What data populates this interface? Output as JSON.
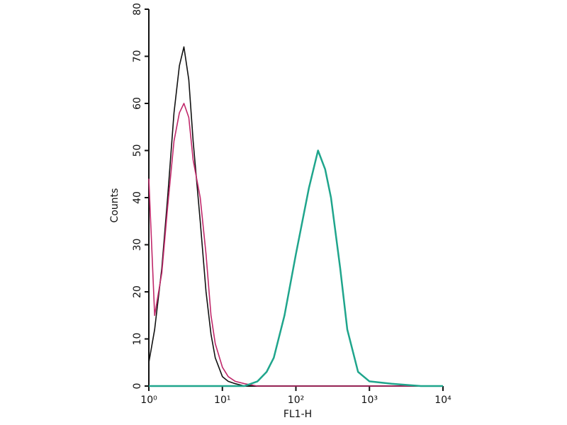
{
  "chart_data": {
    "type": "line",
    "xlabel": "FL1-H",
    "ylabel": "Counts",
    "log_x": true,
    "x": [
      1,
      1.2,
      1.5,
      1.8,
      2.2,
      2.6,
      3,
      3.5,
      4,
      5,
      6,
      7,
      8,
      10,
      12,
      15,
      20,
      30,
      40,
      50,
      70,
      100,
      150,
      200,
      250,
      300,
      400,
      500,
      700,
      1000,
      2000,
      5000,
      10000
    ],
    "series": [
      {
        "color": "#111111",
        "values": [
          5,
          12,
          25,
          40,
          58,
          68,
          72,
          65,
          52,
          35,
          20,
          11,
          6,
          2,
          1,
          0.5,
          0,
          0,
          0,
          0,
          0,
          0,
          0,
          0,
          0,
          0,
          0,
          0,
          0,
          0,
          0,
          0,
          0
        ]
      },
      {
        "color": "#c0286a",
        "values": [
          44,
          15,
          24,
          38,
          52,
          58,
          60,
          57,
          48,
          40,
          28,
          15,
          9,
          4,
          2,
          1,
          0.5,
          0,
          0,
          0,
          0,
          0,
          0,
          0,
          0,
          0,
          0,
          0,
          0,
          0,
          0,
          0,
          0
        ]
      },
      {
        "color": "#1fa58c",
        "values": [
          0,
          0,
          0,
          0,
          0,
          0,
          0,
          0,
          0,
          0,
          0,
          0,
          0,
          0,
          0,
          0,
          0,
          1,
          3,
          6,
          15,
          28,
          42,
          50,
          46,
          40,
          25,
          12,
          3,
          1,
          0.5,
          0,
          0
        ]
      }
    ],
    "xlim": [
      1,
      10000
    ],
    "xticks": [
      {
        "value": 1,
        "label": "10⁰"
      },
      {
        "value": 10,
        "label": "10¹"
      },
      {
        "value": 100,
        "label": "10²"
      },
      {
        "value": 1000,
        "label": "10³"
      },
      {
        "value": 10000,
        "label": "10⁴"
      }
    ],
    "ylim": [
      0,
      80
    ],
    "yticks": [
      0,
      10,
      20,
      30,
      40,
      50,
      60,
      70,
      80
    ]
  }
}
